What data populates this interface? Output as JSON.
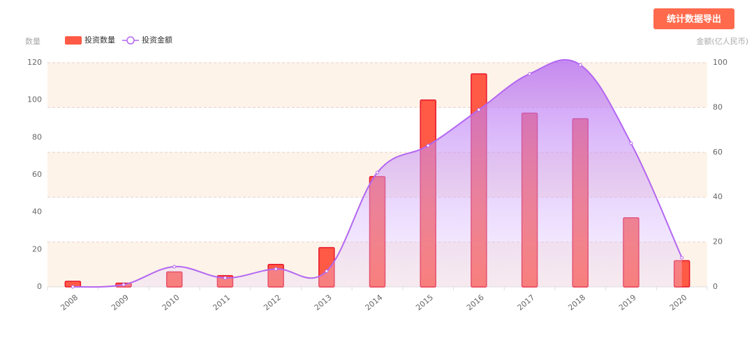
{
  "export_button": "统计数据导出",
  "chart_data": {
    "type": "bar",
    "y_label": "数量",
    "y2_label": "金额(亿人民币)",
    "categories": [
      "2008",
      "2009",
      "2010",
      "2011",
      "2012",
      "2013",
      "2014",
      "2015",
      "2016",
      "2017",
      "2018",
      "2019",
      "2020"
    ],
    "series": [
      {
        "name": "投资数量",
        "type": "bar",
        "color": "#ff5a45",
        "values": [
          3,
          2,
          8,
          6,
          12,
          21,
          59,
          100,
          114,
          93,
          90,
          37,
          14
        ]
      },
      {
        "name": "投资金额",
        "type": "line",
        "axis": "y2",
        "color": "#b366f2",
        "values": [
          0,
          1,
          9,
          4,
          8,
          7,
          51,
          63,
          79,
          95,
          99,
          64,
          13
        ]
      }
    ],
    "ylim": [
      0,
      120
    ],
    "yticks": [
      0,
      20,
      40,
      60,
      80,
      100,
      120
    ],
    "y2lim": [
      0,
      100
    ],
    "y2ticks": [
      0,
      20,
      40,
      60,
      80,
      100
    ],
    "grid": true,
    "split_area": true
  }
}
